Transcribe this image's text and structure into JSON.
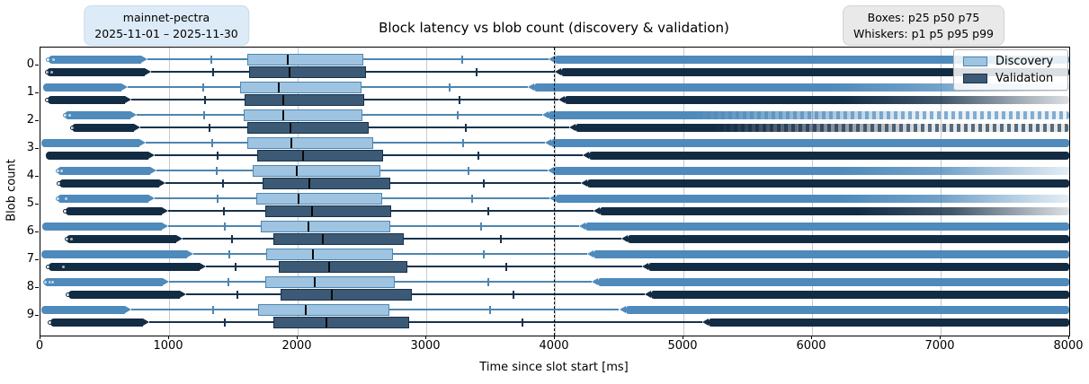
{
  "annotations": {
    "dataset_badge": {
      "line1": "mainnet-pectra",
      "line2": "2025-11-01 – 2025-11-30"
    },
    "stats_badge": {
      "line1": "Boxes: p25 p50 p75",
      "line2": "Whiskers: p1 p5 p95 p99"
    }
  },
  "chart_data": {
    "type": "boxplot",
    "orientation": "horizontal",
    "title": "Block latency vs blob count (discovery & validation)",
    "xlabel": "Time since slot start [ms]",
    "ylabel": "Blob count",
    "xlim": [
      0,
      8000
    ],
    "x_ticks": [
      0,
      1000,
      2000,
      3000,
      4000,
      5000,
      6000,
      7000,
      8000
    ],
    "x_tick_labels": [
      "0",
      "1000",
      "2000",
      "3000",
      "4000",
      "5000",
      "6000",
      "7000",
      "8000"
    ],
    "categories": [
      "0",
      "1",
      "2",
      "3",
      "4",
      "5",
      "6",
      "7",
      "8",
      "9"
    ],
    "grid": "vertical",
    "reference_line_x": 4000,
    "box_percentiles": [
      25,
      50,
      75
    ],
    "whisker_percentiles": [
      1,
      5,
      95,
      99
    ],
    "legend": {
      "position": "upper right",
      "entries": [
        {
          "label": "Discovery",
          "color": "#9ec4e2"
        },
        {
          "label": "Validation",
          "color": "#3c5a75"
        }
      ]
    },
    "series": [
      {
        "name": "Discovery",
        "fill": "#9ec4e2",
        "edge": "#4d86b0",
        "dense": "#4e8abb",
        "stats": [
          {
            "min": 60,
            "p1": 830,
            "p5": 1330,
            "p25": 1610,
            "p50": 1925,
            "p75": 2510,
            "p95": 3280,
            "p99": 3950,
            "max": 8000,
            "tail": "solid",
            "outliers": [
              60,
              100
            ]
          },
          {
            "min": 20,
            "p1": 675,
            "p5": 1265,
            "p25": 1550,
            "p50": 1850,
            "p75": 2495,
            "p95": 3185,
            "p99": 3790,
            "max": 8000,
            "tail": "fade",
            "outliers": []
          },
          {
            "min": 190,
            "p1": 750,
            "p5": 1275,
            "p25": 1580,
            "p50": 1890,
            "p75": 2505,
            "p95": 3245,
            "p99": 3900,
            "max": 8000,
            "tail": "sparse",
            "outliers": [
              195,
              230
            ]
          },
          {
            "min": 10,
            "p1": 820,
            "p5": 1335,
            "p25": 1605,
            "p50": 1950,
            "p75": 2585,
            "p95": 3285,
            "p99": 3920,
            "max": 8000,
            "tail": "solid",
            "outliers": []
          },
          {
            "min": 130,
            "p1": 905,
            "p5": 1370,
            "p25": 1650,
            "p50": 1995,
            "p75": 2640,
            "p95": 3330,
            "p99": 3945,
            "max": 8000,
            "tail": "fade",
            "outliers": [
              135,
              165
            ]
          },
          {
            "min": 130,
            "p1": 890,
            "p5": 1380,
            "p25": 1675,
            "p50": 2010,
            "p75": 2655,
            "p95": 3360,
            "p99": 3960,
            "max": 8000,
            "tail": "fade",
            "outliers": [
              135,
              200
            ]
          },
          {
            "min": 15,
            "p1": 990,
            "p5": 1435,
            "p25": 1715,
            "p50": 2085,
            "p75": 2720,
            "p95": 3430,
            "p99": 4190,
            "max": 8000,
            "tail": "solid",
            "outliers": []
          },
          {
            "min": 10,
            "p1": 1190,
            "p5": 1470,
            "p25": 1755,
            "p50": 2120,
            "p75": 2740,
            "p95": 3450,
            "p99": 4250,
            "max": 8000,
            "tail": "solid",
            "outliers": []
          },
          {
            "min": 30,
            "p1": 1000,
            "p5": 1465,
            "p25": 1750,
            "p50": 2130,
            "p75": 2755,
            "p95": 3480,
            "p99": 4290,
            "max": 8000,
            "tail": "solid",
            "outliers": [
              35,
              70,
              95
            ]
          },
          {
            "min": 5,
            "p1": 705,
            "p5": 1345,
            "p25": 1695,
            "p50": 2060,
            "p75": 2710,
            "p95": 3495,
            "p99": 4500,
            "max": 8000,
            "tail": "solid",
            "outliers": []
          }
        ]
      },
      {
        "name": "Validation",
        "fill": "#3c5a75",
        "edge": "#16324c",
        "dense": "#122c44",
        "stats": [
          {
            "min": 50,
            "p1": 860,
            "p5": 1340,
            "p25": 1620,
            "p50": 1935,
            "p75": 2530,
            "p95": 3390,
            "p99": 4000,
            "max": 8000,
            "tail": "solid",
            "outliers": [
              50,
              85
            ]
          },
          {
            "min": 55,
            "p1": 705,
            "p5": 1280,
            "p25": 1585,
            "p50": 1890,
            "p75": 2520,
            "p95": 3260,
            "p99": 4030,
            "max": 8000,
            "tail": "fade",
            "outliers": [
              55
            ]
          },
          {
            "min": 245,
            "p1": 775,
            "p5": 1315,
            "p25": 1605,
            "p50": 1945,
            "p75": 2555,
            "p95": 3310,
            "p99": 4110,
            "max": 8000,
            "tail": "sparse",
            "outliers": [
              245
            ]
          },
          {
            "min": 45,
            "p1": 890,
            "p5": 1380,
            "p25": 1685,
            "p50": 2045,
            "p75": 2665,
            "p95": 3405,
            "p99": 4220,
            "max": 8000,
            "tail": "solid",
            "outliers": []
          },
          {
            "min": 145,
            "p1": 975,
            "p5": 1420,
            "p25": 1730,
            "p50": 2090,
            "p75": 2720,
            "p95": 3445,
            "p99": 4205,
            "max": 8000,
            "tail": "solid",
            "outliers": [
              145
            ]
          },
          {
            "min": 195,
            "p1": 990,
            "p5": 1430,
            "p25": 1750,
            "p50": 2110,
            "p75": 2725,
            "p95": 3480,
            "p99": 4300,
            "max": 8000,
            "tail": "fade",
            "outliers": [
              195
            ]
          },
          {
            "min": 200,
            "p1": 1105,
            "p5": 1490,
            "p25": 1810,
            "p50": 2195,
            "p75": 2825,
            "p95": 3580,
            "p99": 4520,
            "max": 8000,
            "tail": "solid",
            "outliers": [
              205,
              240
            ]
          },
          {
            "min": 60,
            "p1": 1290,
            "p5": 1520,
            "p25": 1850,
            "p50": 2245,
            "p75": 2855,
            "p95": 3625,
            "p99": 4680,
            "max": 8000,
            "tail": "solid",
            "outliers": [
              60,
              180
            ]
          },
          {
            "min": 215,
            "p1": 1135,
            "p5": 1530,
            "p25": 1865,
            "p50": 2265,
            "p75": 2890,
            "p95": 3675,
            "p99": 4700,
            "max": 8000,
            "tail": "solid",
            "outliers": [
              215
            ]
          },
          {
            "min": 75,
            "p1": 845,
            "p5": 1435,
            "p25": 1810,
            "p50": 2225,
            "p75": 2865,
            "p95": 3745,
            "p99": 5150,
            "max": 8000,
            "tail": "solid",
            "outliers": [
              75
            ]
          }
        ]
      }
    ]
  }
}
